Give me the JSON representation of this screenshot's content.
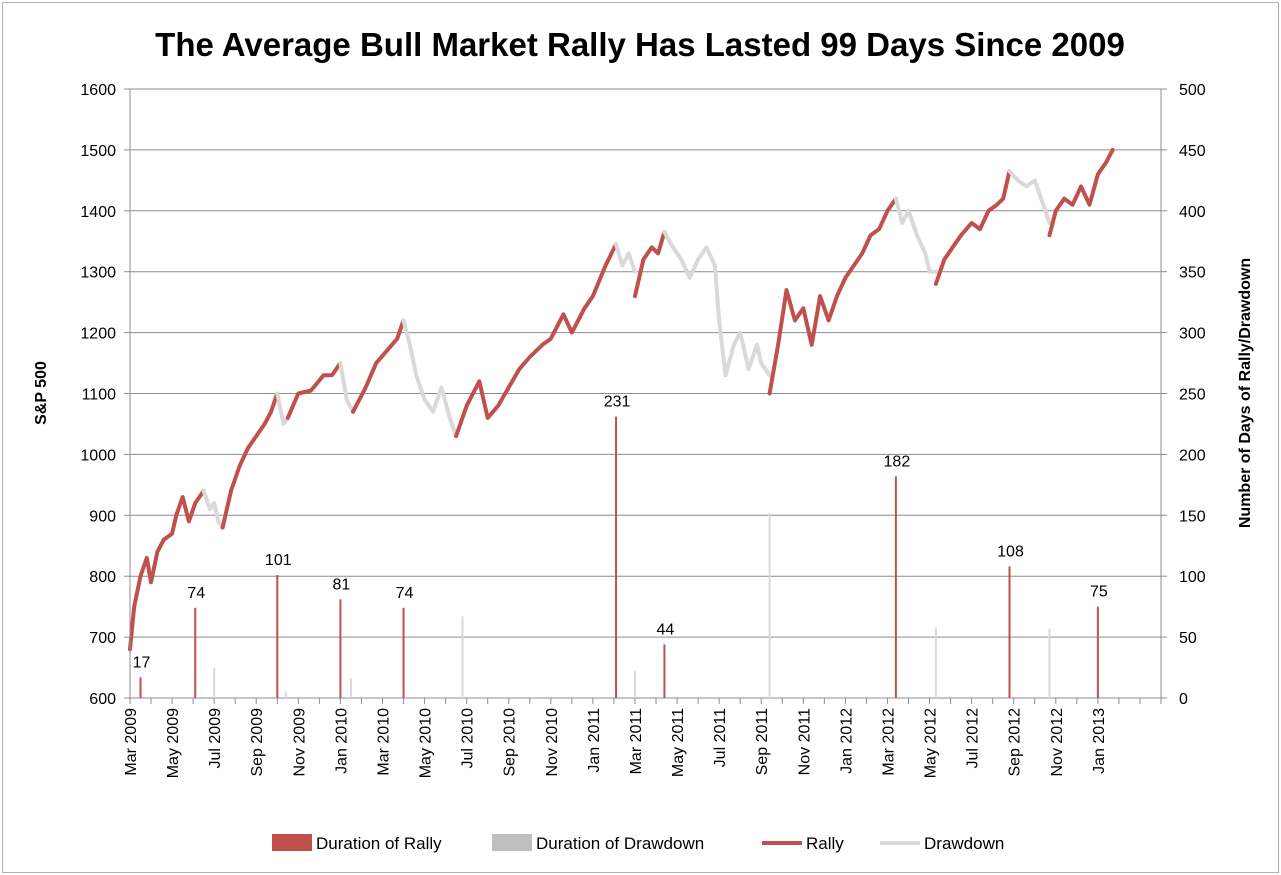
{
  "chart_data": {
    "type": "line",
    "title": "The Average Bull Market Rally Has Lasted 99 Days Since 2009",
    "ylabel_left": "S&P 500",
    "ylabel_right": "Number of Days of Rally/Drawdown",
    "ylim_left": [
      600,
      1600
    ],
    "ylim_right": [
      0,
      500
    ],
    "yticks_left": [
      "600",
      "700",
      "800",
      "900",
      "1000",
      "1100",
      "1200",
      "1300",
      "1400",
      "1500",
      "1600"
    ],
    "yticks_right": [
      "0",
      "50",
      "100",
      "150",
      "200",
      "250",
      "300",
      "350",
      "400",
      "450",
      "500"
    ],
    "x_range_months": [
      0,
      49
    ],
    "xtick_labels": [
      "Mar 2009",
      "May 2009",
      "Jul 2009",
      "Sep 2009",
      "Nov 2009",
      "Jan 2010",
      "Mar 2010",
      "May 2010",
      "Jul 2010",
      "Sep 2010",
      "Nov 2010",
      "Jan 2011",
      "Mar 2011",
      "May 2011",
      "Jul 2011",
      "Sep 2011",
      "Nov 2011",
      "Jan 2012",
      "Mar 2012",
      "May 2012",
      "Jul 2012",
      "Sep 2012",
      "Nov 2012",
      "Jan 2013"
    ],
    "colors": {
      "rally": "#c0504d",
      "drawdown": "#d9d9d9",
      "drawdown_bar": "#bfbfbf",
      "grid": "#8c8c8c"
    },
    "legend": [
      {
        "name": "Duration of Rally",
        "kind": "bar",
        "color": "#c0504d"
      },
      {
        "name": "Duration of Drawdown",
        "kind": "bar",
        "color": "#bfbfbf"
      },
      {
        "name": "Rally",
        "kind": "line",
        "color": "#c0504d"
      },
      {
        "name": "Drawdown",
        "kind": "line",
        "color": "#d9d9d9"
      }
    ],
    "duration_bars": [
      {
        "month": 0.5,
        "days": 17,
        "kind": "rally",
        "label": "17"
      },
      {
        "month": 3.1,
        "days": 74,
        "kind": "rally",
        "label": "74"
      },
      {
        "month": 4.0,
        "days": 25,
        "kind": "drawdown"
      },
      {
        "month": 7.0,
        "days": 101,
        "kind": "rally",
        "label": "101"
      },
      {
        "month": 7.4,
        "days": 5,
        "kind": "drawdown"
      },
      {
        "month": 10.0,
        "days": 81,
        "kind": "rally",
        "label": "81"
      },
      {
        "month": 10.5,
        "days": 16,
        "kind": "drawdown"
      },
      {
        "month": 13.0,
        "days": 74,
        "kind": "rally",
        "label": "74"
      },
      {
        "month": 15.8,
        "days": 67,
        "kind": "drawdown"
      },
      {
        "month": 23.1,
        "days": 231,
        "kind": "rally",
        "label": "231"
      },
      {
        "month": 24.0,
        "days": 22,
        "kind": "drawdown"
      },
      {
        "month": 25.4,
        "days": 44,
        "kind": "rally",
        "label": "44"
      },
      {
        "month": 30.4,
        "days": 152,
        "kind": "drawdown"
      },
      {
        "month": 36.4,
        "days": 182,
        "kind": "rally",
        "label": "182"
      },
      {
        "month": 38.3,
        "days": 58,
        "kind": "drawdown"
      },
      {
        "month": 41.8,
        "days": 108,
        "kind": "rally",
        "label": "108"
      },
      {
        "month": 43.7,
        "days": 57,
        "kind": "drawdown"
      },
      {
        "month": 46.0,
        "days": 75,
        "kind": "rally",
        "label": "75"
      }
    ],
    "sp500_segments": [
      {
        "kind": "rally",
        "points": [
          [
            0.0,
            680
          ],
          [
            0.2,
            750
          ],
          [
            0.5,
            800
          ],
          [
            0.8,
            830
          ],
          [
            1.0,
            790
          ],
          [
            1.3,
            840
          ],
          [
            1.6,
            860
          ],
          [
            2.0,
            870
          ],
          [
            2.2,
            900
          ],
          [
            2.5,
            930
          ],
          [
            2.8,
            890
          ],
          [
            3.1,
            920
          ],
          [
            3.5,
            940
          ]
        ]
      },
      {
        "kind": "drawdown",
        "points": [
          [
            3.5,
            940
          ],
          [
            3.8,
            910
          ],
          [
            4.0,
            920
          ],
          [
            4.2,
            890
          ],
          [
            4.4,
            880
          ]
        ]
      },
      {
        "kind": "rally",
        "points": [
          [
            4.4,
            880
          ],
          [
            4.8,
            940
          ],
          [
            5.2,
            980
          ],
          [
            5.6,
            1010
          ],
          [
            6.0,
            1030
          ],
          [
            6.4,
            1050
          ],
          [
            6.7,
            1070
          ],
          [
            7.0,
            1100
          ]
        ]
      },
      {
        "kind": "drawdown",
        "points": [
          [
            7.0,
            1100
          ],
          [
            7.3,
            1050
          ],
          [
            7.5,
            1060
          ]
        ]
      },
      {
        "kind": "rally",
        "points": [
          [
            7.5,
            1060
          ],
          [
            8.0,
            1100
          ],
          [
            8.6,
            1105
          ],
          [
            9.2,
            1130
          ],
          [
            9.6,
            1130
          ],
          [
            10.0,
            1150
          ]
        ]
      },
      {
        "kind": "drawdown",
        "points": [
          [
            10.0,
            1150
          ],
          [
            10.3,
            1090
          ],
          [
            10.6,
            1070
          ]
        ]
      },
      {
        "kind": "rally",
        "points": [
          [
            10.6,
            1070
          ],
          [
            11.2,
            1110
          ],
          [
            11.7,
            1150
          ],
          [
            12.2,
            1170
          ],
          [
            12.7,
            1190
          ],
          [
            13.0,
            1220
          ]
        ]
      },
      {
        "kind": "drawdown",
        "points": [
          [
            13.0,
            1220
          ],
          [
            13.3,
            1180
          ],
          [
            13.6,
            1130
          ],
          [
            14.0,
            1090
          ],
          [
            14.4,
            1070
          ],
          [
            14.8,
            1110
          ],
          [
            15.2,
            1060
          ],
          [
            15.5,
            1030
          ]
        ]
      },
      {
        "kind": "rally",
        "points": [
          [
            15.5,
            1030
          ],
          [
            16.0,
            1080
          ],
          [
            16.6,
            1120
          ],
          [
            17.0,
            1060
          ],
          [
            17.5,
            1080
          ],
          [
            18.0,
            1110
          ],
          [
            18.5,
            1140
          ],
          [
            19.0,
            1160
          ],
          [
            19.6,
            1180
          ],
          [
            20.0,
            1190
          ],
          [
            20.6,
            1230
          ],
          [
            21.0,
            1200
          ],
          [
            21.6,
            1240
          ],
          [
            22.0,
            1260
          ],
          [
            22.6,
            1310
          ],
          [
            23.1,
            1345
          ]
        ]
      },
      {
        "kind": "drawdown",
        "points": [
          [
            23.1,
            1345
          ],
          [
            23.4,
            1310
          ],
          [
            23.7,
            1330
          ],
          [
            24.0,
            1300
          ]
        ]
      },
      {
        "kind": "rally",
        "points": [
          [
            24.0,
            1260
          ],
          [
            24.4,
            1320
          ],
          [
            24.8,
            1340
          ],
          [
            25.1,
            1330
          ],
          [
            25.4,
            1365
          ]
        ]
      },
      {
        "kind": "drawdown",
        "points": [
          [
            25.4,
            1365
          ],
          [
            25.8,
            1340
          ],
          [
            26.2,
            1320
          ],
          [
            26.6,
            1290
          ],
          [
            27.0,
            1320
          ],
          [
            27.4,
            1340
          ],
          [
            27.8,
            1310
          ],
          [
            28.0,
            1220
          ],
          [
            28.3,
            1130
          ],
          [
            28.7,
            1180
          ],
          [
            29.0,
            1200
          ],
          [
            29.4,
            1140
          ],
          [
            29.8,
            1180
          ],
          [
            30.0,
            1150
          ],
          [
            30.4,
            1130
          ]
        ]
      },
      {
        "kind": "rally",
        "points": [
          [
            30.4,
            1100
          ],
          [
            30.8,
            1180
          ],
          [
            31.2,
            1270
          ],
          [
            31.6,
            1220
          ],
          [
            32.0,
            1240
          ],
          [
            32.4,
            1180
          ],
          [
            32.8,
            1260
          ],
          [
            33.2,
            1220
          ],
          [
            33.6,
            1260
          ],
          [
            34.0,
            1290
          ],
          [
            34.4,
            1310
          ],
          [
            34.8,
            1330
          ],
          [
            35.2,
            1360
          ],
          [
            35.6,
            1370
          ],
          [
            36.0,
            1400
          ],
          [
            36.4,
            1420
          ]
        ]
      },
      {
        "kind": "drawdown",
        "points": [
          [
            36.4,
            1420
          ],
          [
            36.7,
            1380
          ],
          [
            37.0,
            1400
          ],
          [
            37.4,
            1360
          ],
          [
            37.8,
            1330
          ],
          [
            38.0,
            1300
          ],
          [
            38.3,
            1300
          ]
        ]
      },
      {
        "kind": "rally",
        "points": [
          [
            38.3,
            1280
          ],
          [
            38.7,
            1320
          ],
          [
            39.1,
            1340
          ],
          [
            39.5,
            1360
          ],
          [
            40.0,
            1380
          ],
          [
            40.4,
            1370
          ],
          [
            40.8,
            1400
          ],
          [
            41.2,
            1410
          ],
          [
            41.5,
            1420
          ],
          [
            41.8,
            1465
          ]
        ]
      },
      {
        "kind": "drawdown",
        "points": [
          [
            41.8,
            1465
          ],
          [
            42.2,
            1450
          ],
          [
            42.6,
            1440
          ],
          [
            43.0,
            1450
          ],
          [
            43.4,
            1410
          ],
          [
            43.7,
            1380
          ]
        ]
      },
      {
        "kind": "rally",
        "points": [
          [
            43.7,
            1360
          ],
          [
            44.0,
            1400
          ],
          [
            44.4,
            1420
          ],
          [
            44.8,
            1410
          ],
          [
            45.2,
            1440
          ],
          [
            45.6,
            1410
          ],
          [
            46.0,
            1460
          ],
          [
            46.4,
            1480
          ],
          [
            46.7,
            1500
          ]
        ]
      }
    ],
    "annotation_labels": [
      "17",
      "74",
      "101",
      "81",
      "74",
      "231",
      "44",
      "182",
      "108",
      "75"
    ]
  }
}
